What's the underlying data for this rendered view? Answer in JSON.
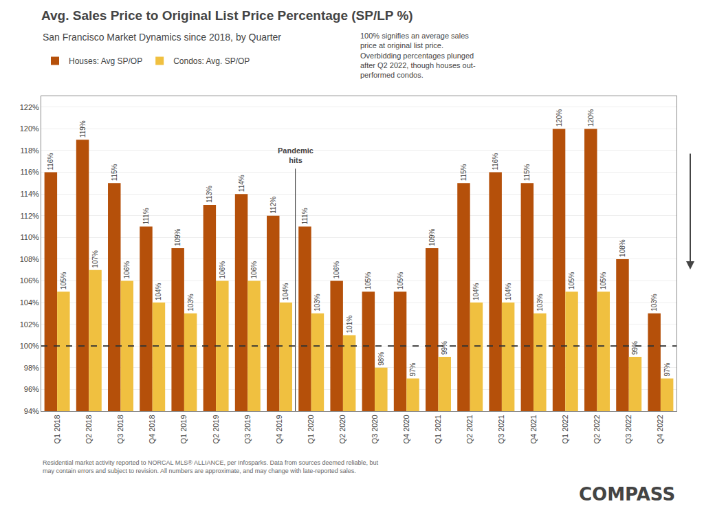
{
  "chart_data": {
    "type": "bar",
    "title": "Avg. Sales Price to Original List Price Percentage (SP/LP %)",
    "subtitle": "San Francisco Market Dynamics since 2018, by Quarter",
    "categories": [
      "Q1 2018",
      "Q2 2018",
      "Q3 2018",
      "Q4 2018",
      "Q1 2019",
      "Q2 2019",
      "Q3 2019",
      "Q4 2019",
      "Q1 2020",
      "Q2 2020",
      "Q3 2020",
      "Q4 2020",
      "Q1 2021",
      "Q2 2021",
      "Q3 2021",
      "Q4 2021",
      "Q1 2022",
      "Q2 2022",
      "Q3 2022",
      "Q4 2022"
    ],
    "series": [
      {
        "name": "Houses: Avg SP/OP",
        "color": "#b5500a",
        "values": [
          116,
          119,
          115,
          111,
          109,
          113,
          114,
          112,
          111,
          106,
          105,
          105,
          109,
          115,
          116,
          115,
          120,
          120,
          108,
          103
        ],
        "value_labels": [
          "116%",
          "119%",
          "115%",
          "111%",
          "109%",
          "113%",
          "114%",
          "112%",
          "111%",
          "106%",
          "105%",
          "105%",
          "109%",
          "115%",
          "116%",
          "115%",
          "120%",
          "120%",
          "108%",
          "103%"
        ]
      },
      {
        "name": "Condos: Avg. SP/OP",
        "color": "#f0c040",
        "values": [
          105,
          107,
          106,
          104,
          103,
          106,
          106,
          104,
          103,
          101,
          98,
          97,
          99,
          104,
          104,
          103,
          105,
          105,
          99,
          97
        ],
        "value_labels": [
          "105%",
          "107%",
          "106%",
          "104%",
          "103%",
          "106%",
          "106%",
          "104%",
          "103%",
          "101%",
          "98%",
          "97%",
          "99%",
          "104%",
          "104%",
          "103%",
          "105%",
          "105%",
          "99%",
          "97%"
        ]
      }
    ],
    "ylim": [
      94,
      123
    ],
    "yticks": [
      {
        "value": 94,
        "label": "94%"
      },
      {
        "value": 96,
        "label": "96%"
      },
      {
        "value": 98,
        "label": "98%"
      },
      {
        "value": 100,
        "label": "100%"
      },
      {
        "value": 102,
        "label": "102%"
      },
      {
        "value": 104,
        "label": "104%"
      },
      {
        "value": 106,
        "label": "106%"
      },
      {
        "value": 108,
        "label": "108%"
      },
      {
        "value": 110,
        "label": "110%"
      },
      {
        "value": 112,
        "label": "112%"
      },
      {
        "value": 114,
        "label": "114%"
      },
      {
        "value": 116,
        "label": "116%"
      },
      {
        "value": 118,
        "label": "118%"
      },
      {
        "value": 120,
        "label": "120%"
      },
      {
        "value": 122,
        "label": "122%"
      }
    ],
    "grid": true,
    "legend": "upper left",
    "data_labels": true,
    "reference_line": 100,
    "annotations": [
      "100% signifies an average sales\nprice at original list price.\nOverbidding percentages plunged\nafter Q2 2022, though houses out-\nperformed condos.",
      "Pandemic\nhits"
    ],
    "footnote": "Residential market activity reported to NORCAL MLS® ALLIANCE, per Infosparks. Data from sources deemed reliable, but\nmay contain errors and subject to revision. All numbers are approximate, and may change with late-reported sales.",
    "logo": "COMPASS"
  }
}
